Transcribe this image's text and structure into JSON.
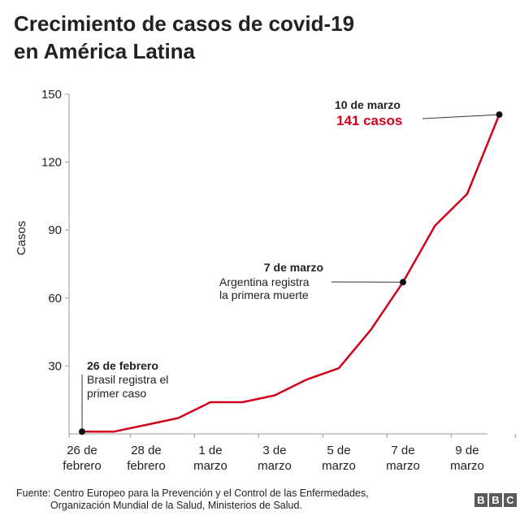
{
  "title": {
    "line1": "Crecimiento de casos de covid-19",
    "line2": "en América Latina"
  },
  "chart_data": {
    "type": "line",
    "ylabel": "Casos",
    "ylim": [
      0,
      150
    ],
    "yticks": [
      30,
      60,
      90,
      120,
      150
    ],
    "xticks": [
      {
        "day": 0,
        "line1": "26 de",
        "line2": "febrero"
      },
      {
        "day": 2,
        "line1": "28 de",
        "line2": "febrero"
      },
      {
        "day": 4,
        "line1": "1 de",
        "line2": "marzo"
      },
      {
        "day": 6,
        "line1": "3 de",
        "line2": "marzo"
      },
      {
        "day": 8,
        "line1": "5 de",
        "line2": "marzo"
      },
      {
        "day": 10,
        "line1": "7 de",
        "line2": "marzo"
      },
      {
        "day": 12,
        "line1": "9 de",
        "line2": "marzo"
      }
    ],
    "series": [
      {
        "color": "#d0021b",
        "x": [
          0,
          1,
          2,
          3,
          4,
          5,
          6,
          7,
          8,
          9,
          10,
          11,
          12,
          13
        ],
        "values": [
          1,
          1,
          4,
          7,
          14,
          14,
          17,
          24,
          29,
          46,
          67,
          92,
          106,
          141
        ]
      }
    ],
    "annotations": [
      {
        "day": 0,
        "value": 1,
        "title": "26 de febrero",
        "lines": [
          "Brasil registra el",
          "primer caso"
        ]
      },
      {
        "day": 10,
        "value": 67,
        "title": "7 de marzo",
        "lines": [
          "Argentina registra",
          "la primera muerte"
        ]
      },
      {
        "day": 13,
        "value": 141,
        "title": "10 de marzo",
        "highlight": "141 casos"
      }
    ],
    "colors": {
      "line": "#d0021b",
      "axis": "#999999",
      "text": "#222222",
      "highlight": "#d0021b"
    }
  },
  "footer": {
    "line1": "Fuente: Centro Europeo para la Prevención y el Control de las Enfermedades,",
    "line2": "Organización Mundial de la Salud, Ministerios de Salud."
  },
  "logo": {
    "letters": [
      "B",
      "B",
      "C"
    ]
  }
}
